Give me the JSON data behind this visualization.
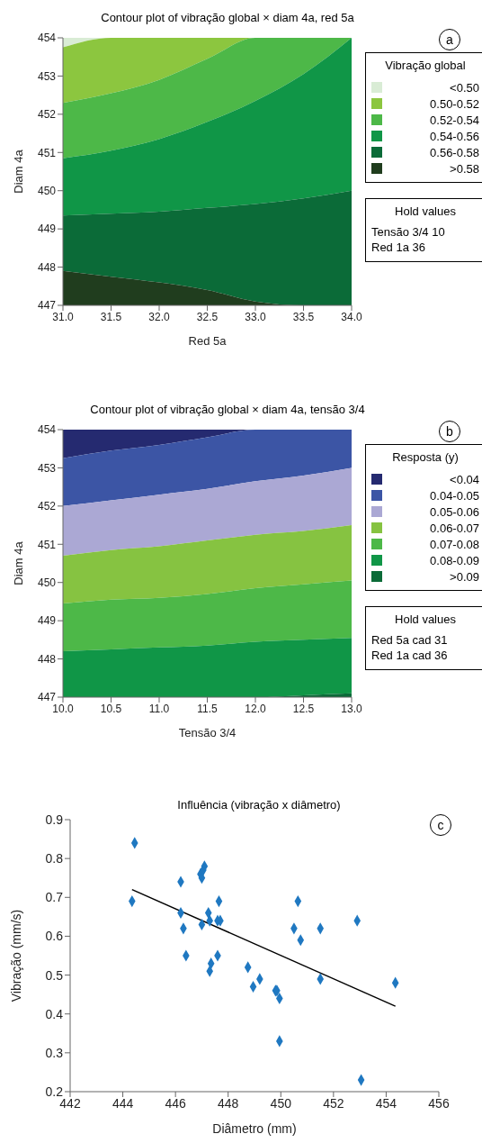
{
  "chart_data": [
    {
      "type": "area",
      "title": "Contour plot of vibração global × diam 4a, red 5a",
      "xlabel": "Red 5a",
      "ylabel": "Diam 4a",
      "legend_title": "Vibração global",
      "legend": "right",
      "x": [
        31,
        31.5,
        32,
        32.5,
        33,
        33.5,
        34
      ],
      "xlim": [
        31,
        34
      ],
      "xticks": [
        {
          "value": 31,
          "label": "31.0"
        },
        {
          "value": 31.5,
          "label": "31.5"
        },
        {
          "value": 32,
          "label": "32.0"
        },
        {
          "value": 32.5,
          "label": "32.5"
        },
        {
          "value": 33,
          "label": "33.0"
        },
        {
          "value": 33.5,
          "label": "33.5"
        },
        {
          "value": 34,
          "label": "34.0"
        }
      ],
      "ylim": [
        447,
        454
      ],
      "yticks": [
        447,
        448,
        449,
        450,
        451,
        452,
        453,
        454
      ],
      "series": [
        {
          "name": "<0.50",
          "color": "#d9ecd5",
          "values": [
            454,
            454,
            454,
            454,
            454,
            454,
            454
          ]
        },
        {
          "name": "0.50-0.52",
          "color": "#8cc63f",
          "values": [
            453.75,
            454,
            454,
            454,
            454,
            454,
            454
          ]
        },
        {
          "name": "0.52-0.54",
          "color": "#4db848",
          "values": [
            452.3,
            452.55,
            452.9,
            453.45,
            454,
            454,
            454
          ]
        },
        {
          "name": "0.54-0.56",
          "color": "#109647",
          "values": [
            450.85,
            451.05,
            451.35,
            451.8,
            452.35,
            453.05,
            454
          ]
        },
        {
          "name": "0.56-0.58",
          "color": "#0b6b38",
          "values": [
            449.35,
            449.4,
            449.45,
            449.55,
            449.65,
            449.8,
            450
          ]
        },
        {
          "name": ">0.58",
          "color": "#203d1e",
          "values": [
            447.9,
            447.75,
            447.6,
            447.4,
            447.1,
            447,
            447
          ]
        }
      ],
      "annotations": [
        "Hold values",
        "Tensão 3/4 10",
        "Red 1a 36",
        "a"
      ]
    },
    {
      "type": "area",
      "title": "Contour plot of vibração global × diam 4a, tensão 3/4",
      "xlabel": "Tensão 3/4",
      "ylabel": "Diam 4a",
      "legend_title": "Resposta (y)",
      "legend": "right",
      "x": [
        10,
        10.5,
        11,
        11.5,
        12,
        12.5,
        13
      ],
      "xlim": [
        10,
        13
      ],
      "xticks": [
        {
          "value": 10,
          "label": "10.0"
        },
        {
          "value": 10.5,
          "label": "10.5"
        },
        {
          "value": 11,
          "label": "11.0"
        },
        {
          "value": 11.5,
          "label": "11.5"
        },
        {
          "value": 12,
          "label": "12.0"
        },
        {
          "value": 12.5,
          "label": "12.5"
        },
        {
          "value": 13,
          "label": "13.0"
        }
      ],
      "ylim": [
        447,
        454
      ],
      "yticks": [
        447,
        448,
        449,
        450,
        451,
        452,
        453,
        454
      ],
      "series": [
        {
          "name": "<0.04",
          "color": "#252a70",
          "values": [
            454,
            454,
            454,
            454,
            454,
            454,
            454
          ]
        },
        {
          "name": "0.04-0.05",
          "color": "#3c55a5",
          "values": [
            453.25,
            453.45,
            453.6,
            453.8,
            454,
            454,
            454
          ]
        },
        {
          "name": "0.05-0.06",
          "color": "#aba8d4",
          "values": [
            452,
            452.15,
            452.3,
            452.45,
            452.65,
            452.8,
            453
          ]
        },
        {
          "name": "0.06-0.07",
          "color": "#86c341",
          "values": [
            450.7,
            450.85,
            450.95,
            451.1,
            451.25,
            451.35,
            451.5
          ]
        },
        {
          "name": "0.07-0.08",
          "color": "#4db848",
          "values": [
            449.45,
            449.55,
            449.6,
            449.7,
            449.85,
            449.95,
            450.05
          ]
        },
        {
          "name": "0.08-0.09",
          "color": "#109647",
          "values": [
            448.2,
            448.25,
            448.3,
            448.35,
            448.45,
            448.5,
            448.55
          ]
        },
        {
          "name": ">0.09",
          "color": "#0b6b38",
          "values": [
            447,
            447,
            447,
            447,
            447,
            447.05,
            447.1
          ]
        }
      ],
      "annotations": [
        "Hold values",
        "Red 5a cad 31",
        "Red 1a cad 36",
        "b"
      ]
    },
    {
      "type": "scatter",
      "title": "Influência (vibração x diâmetro)",
      "xlabel": "Diâmetro (mm)",
      "ylabel": "Vibração (mm/s)",
      "marker": "diamond",
      "xlim": [
        442,
        456
      ],
      "xticks": [
        442,
        444,
        446,
        448,
        450,
        452,
        454,
        456
      ],
      "ylim": [
        0.2,
        0.9
      ],
      "yticks": [
        0.2,
        0.3,
        0.4,
        0.5,
        0.6,
        0.7,
        0.8,
        0.9
      ],
      "series": [
        {
          "color": "#1f78c1",
          "x": [
            444.45,
            444.35,
            446.2,
            446.2,
            446.3,
            446.4,
            446.95,
            447,
            447.05,
            447.1,
            447,
            447.25,
            447.3,
            447.35,
            447.3,
            447.6,
            447.65,
            447.6,
            447.7,
            448.75,
            448.95,
            449.2,
            449.8,
            449.85,
            449.95,
            449.95,
            450.5,
            450.65,
            450.75,
            451.5,
            451.5,
            452.9,
            453.05,
            454.35
          ],
          "values": [
            0.84,
            0.69,
            0.74,
            0.66,
            0.62,
            0.55,
            0.76,
            0.75,
            0.77,
            0.78,
            0.63,
            0.66,
            0.64,
            0.53,
            0.51,
            0.55,
            0.69,
            0.64,
            0.64,
            0.52,
            0.47,
            0.49,
            0.46,
            0.46,
            0.44,
            0.33,
            0.62,
            0.69,
            0.59,
            0.62,
            0.49,
            0.64,
            0.23,
            0.48
          ]
        },
        {
          "type": "line",
          "marker": "none",
          "color": "#000000",
          "x": [
            444.35,
            454.35
          ],
          "values": [
            0.72,
            0.42
          ]
        }
      ],
      "annotations": [
        "c"
      ]
    }
  ]
}
